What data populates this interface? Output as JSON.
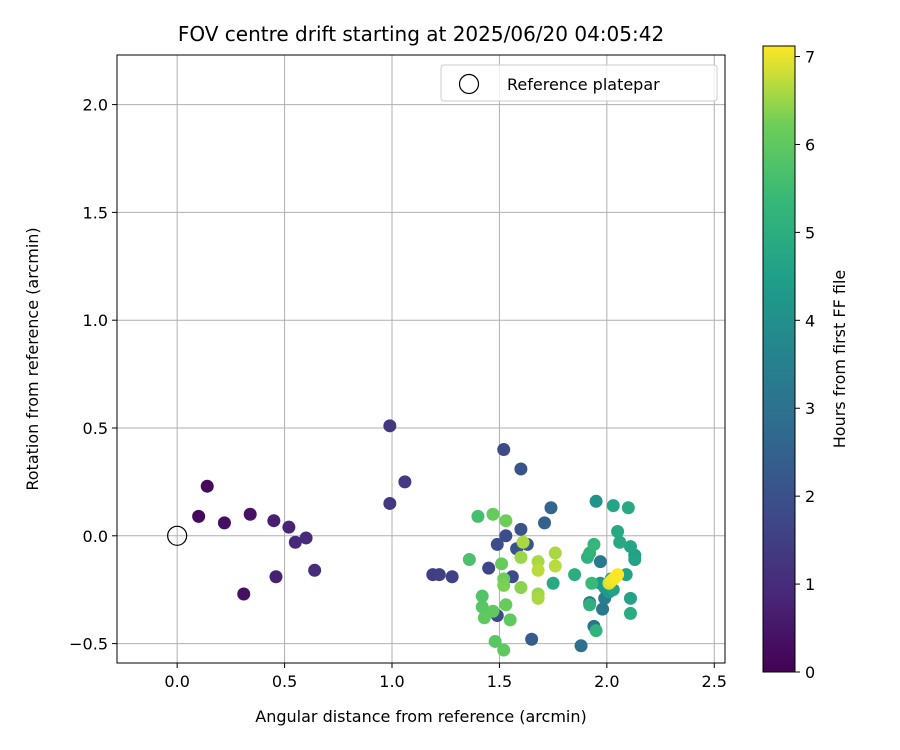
{
  "chart_data": {
    "type": "scatter",
    "title": "FOV centre drift starting at 2025/06/20 04:05:42",
    "xlabel": "Angular distance from reference (arcmin)",
    "ylabel": "Rotation from reference (arcmin)",
    "xlim": [
      -0.28,
      2.55
    ],
    "ylim": [
      -0.59,
      2.23
    ],
    "xticks": [
      "0.0",
      "0.5",
      "1.0",
      "1.5",
      "2.0",
      "2.5"
    ],
    "xtick_values": [
      0,
      0.5,
      1.0,
      1.5,
      2.0,
      2.5
    ],
    "yticks": [
      "−0.5",
      "0.0",
      "0.5",
      "1.0",
      "1.5",
      "2.0"
    ],
    "ytick_values": [
      -0.5,
      0,
      0.5,
      1.0,
      1.5,
      2.0
    ],
    "grid": true,
    "legend": {
      "label": "Reference platepar",
      "placement": "top-right"
    },
    "reference_point": {
      "x": 0.0,
      "y": 0.0
    },
    "colorbar": {
      "label": "Hours from first FF file",
      "range": [
        0,
        7.12
      ],
      "ticks": [
        "0",
        "1",
        "2",
        "3",
        "4",
        "5",
        "6",
        "7"
      ],
      "tick_values": [
        0,
        1,
        2,
        3,
        4,
        5,
        6,
        7
      ],
      "colormap": "viridis"
    },
    "points": [
      {
        "x": 0.1,
        "y": 0.09,
        "t": 0.15
      },
      {
        "x": 0.14,
        "y": 0.23,
        "t": 0.2
      },
      {
        "x": 0.22,
        "y": 0.06,
        "t": 0.3
      },
      {
        "x": 0.31,
        "y": -0.27,
        "t": 0.35
      },
      {
        "x": 0.34,
        "y": 0.1,
        "t": 0.4
      },
      {
        "x": 0.45,
        "y": 0.07,
        "t": 0.7
      },
      {
        "x": 0.46,
        "y": -0.19,
        "t": 0.75
      },
      {
        "x": 0.52,
        "y": 0.04,
        "t": 0.8
      },
      {
        "x": 0.55,
        "y": -0.03,
        "t": 0.9
      },
      {
        "x": 0.6,
        "y": -0.01,
        "t": 0.95
      },
      {
        "x": 0.64,
        "y": -0.16,
        "t": 1.0
      },
      {
        "x": 0.99,
        "y": 0.51,
        "t": 1.3
      },
      {
        "x": 0.99,
        "y": 0.15,
        "t": 1.35
      },
      {
        "x": 1.06,
        "y": 0.25,
        "t": 1.4
      },
      {
        "x": 1.19,
        "y": -0.18,
        "t": 1.5
      },
      {
        "x": 1.22,
        "y": -0.18,
        "t": 1.55
      },
      {
        "x": 1.28,
        "y": -0.19,
        "t": 1.6
      },
      {
        "x": 1.45,
        "y": -0.15,
        "t": 1.7
      },
      {
        "x": 1.49,
        "y": -0.04,
        "t": 1.9
      },
      {
        "x": 1.49,
        "y": -0.37,
        "t": 1.8
      },
      {
        "x": 1.52,
        "y": 0.4,
        "t": 1.85
      },
      {
        "x": 1.53,
        "y": 0.0,
        "t": 1.9
      },
      {
        "x": 1.56,
        "y": -0.19,
        "t": 1.8
      },
      {
        "x": 1.58,
        "y": -0.06,
        "t": 2.0
      },
      {
        "x": 1.6,
        "y": 0.31,
        "t": 2.1
      },
      {
        "x": 1.6,
        "y": 0.03,
        "t": 2.1
      },
      {
        "x": 1.63,
        "y": -0.04,
        "t": 2.2
      },
      {
        "x": 1.65,
        "y": -0.48,
        "t": 2.3
      },
      {
        "x": 1.71,
        "y": 0.06,
        "t": 2.5
      },
      {
        "x": 1.74,
        "y": 0.13,
        "t": 2.6
      },
      {
        "x": 1.88,
        "y": -0.51,
        "t": 2.9
      },
      {
        "x": 1.92,
        "y": -0.31,
        "t": 3.1
      },
      {
        "x": 1.94,
        "y": -0.42,
        "t": 3.1
      },
      {
        "x": 1.97,
        "y": -0.12,
        "t": 3.3
      },
      {
        "x": 1.98,
        "y": -0.34,
        "t": 3.2
      },
      {
        "x": 1.99,
        "y": -0.29,
        "t": 3.4
      },
      {
        "x": 1.95,
        "y": 0.16,
        "t": 4.1
      },
      {
        "x": 1.97,
        "y": -0.22,
        "t": 4.2
      },
      {
        "x": 1.99,
        "y": -0.24,
        "t": 4.3
      },
      {
        "x": 2.01,
        "y": -0.26,
        "t": 4.4
      },
      {
        "x": 2.02,
        "y": -0.2,
        "t": 4.5
      },
      {
        "x": 2.03,
        "y": -0.25,
        "t": 4.6
      },
      {
        "x": 2.03,
        "y": 0.14,
        "t": 4.7
      },
      {
        "x": 2.05,
        "y": 0.02,
        "t": 4.8
      },
      {
        "x": 2.06,
        "y": -0.03,
        "t": 4.8
      },
      {
        "x": 2.09,
        "y": -0.18,
        "t": 4.6
      },
      {
        "x": 2.1,
        "y": 0.13,
        "t": 4.8
      },
      {
        "x": 2.11,
        "y": -0.05,
        "t": 4.7
      },
      {
        "x": 2.11,
        "y": -0.29,
        "t": 4.6
      },
      {
        "x": 2.11,
        "y": -0.36,
        "t": 4.9
      },
      {
        "x": 2.13,
        "y": -0.09,
        "t": 4.5
      },
      {
        "x": 2.13,
        "y": -0.11,
        "t": 4.6
      },
      {
        "x": 1.75,
        "y": -0.22,
        "t": 4.8
      },
      {
        "x": 1.85,
        "y": -0.18,
        "t": 5.0
      },
      {
        "x": 1.91,
        "y": -0.1,
        "t": 5.1
      },
      {
        "x": 1.92,
        "y": -0.08,
        "t": 5.2
      },
      {
        "x": 1.92,
        "y": -0.32,
        "t": 5.1
      },
      {
        "x": 1.94,
        "y": -0.04,
        "t": 5.3
      },
      {
        "x": 1.95,
        "y": -0.44,
        "t": 5.2
      },
      {
        "x": 1.93,
        "y": -0.22,
        "t": 5.4
      },
      {
        "x": 1.36,
        "y": -0.11,
        "t": 5.7
      },
      {
        "x": 1.4,
        "y": 0.09,
        "t": 5.6
      },
      {
        "x": 1.42,
        "y": -0.28,
        "t": 5.8
      },
      {
        "x": 1.42,
        "y": -0.33,
        "t": 5.9
      },
      {
        "x": 1.43,
        "y": -0.38,
        "t": 6.0
      },
      {
        "x": 1.47,
        "y": 0.1,
        "t": 6.1
      },
      {
        "x": 1.47,
        "y": -0.35,
        "t": 6.0
      },
      {
        "x": 1.48,
        "y": -0.49,
        "t": 5.9
      },
      {
        "x": 1.51,
        "y": -0.13,
        "t": 6.1
      },
      {
        "x": 1.52,
        "y": -0.2,
        "t": 6.2
      },
      {
        "x": 1.52,
        "y": -0.23,
        "t": 6.3
      },
      {
        "x": 1.52,
        "y": -0.53,
        "t": 6.0
      },
      {
        "x": 1.53,
        "y": 0.07,
        "t": 6.2
      },
      {
        "x": 1.53,
        "y": -0.32,
        "t": 6.1
      },
      {
        "x": 1.55,
        "y": -0.39,
        "t": 6.0
      },
      {
        "x": 1.6,
        "y": -0.1,
        "t": 6.5
      },
      {
        "x": 1.6,
        "y": -0.24,
        "t": 6.4
      },
      {
        "x": 1.61,
        "y": -0.03,
        "t": 6.6
      },
      {
        "x": 1.68,
        "y": -0.12,
        "t": 6.6
      },
      {
        "x": 1.68,
        "y": -0.27,
        "t": 6.5
      },
      {
        "x": 1.68,
        "y": -0.29,
        "t": 6.6
      },
      {
        "x": 1.68,
        "y": -0.16,
        "t": 6.7
      },
      {
        "x": 1.76,
        "y": -0.08,
        "t": 6.6
      },
      {
        "x": 1.76,
        "y": -0.14,
        "t": 6.7
      },
      {
        "x": 2.01,
        "y": -0.22,
        "t": 6.9
      },
      {
        "x": 2.02,
        "y": -0.21,
        "t": 7.0
      },
      {
        "x": 2.03,
        "y": -0.2,
        "t": 7.05
      },
      {
        "x": 2.04,
        "y": -0.19,
        "t": 7.1
      },
      {
        "x": 2.05,
        "y": -0.18,
        "t": 7.12
      }
    ]
  }
}
